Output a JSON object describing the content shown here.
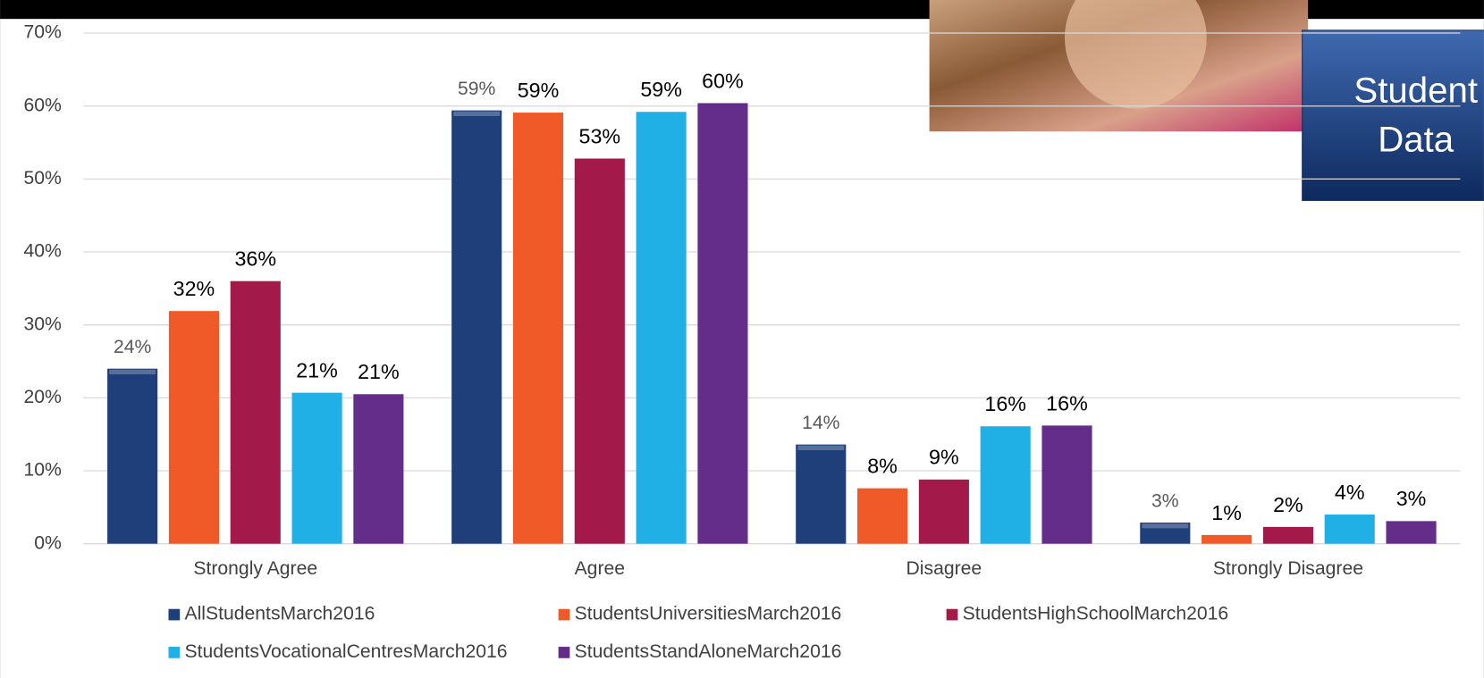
{
  "chart_data": {
    "type": "bar",
    "categories": [
      "Strongly Agree",
      "Agree",
      "Disagree",
      "Strongly Disagree"
    ],
    "series": [
      {
        "name": "AllStudentsMarch2016",
        "color": "#1f3f7a",
        "values": [
          24.0,
          59.4,
          13.6,
          2.9
        ],
        "value_labels": [
          "24%",
          "59%",
          "14%",
          "3%"
        ]
      },
      {
        "name": "StudentsUniversitiesMarch2016",
        "color": "#f05a28",
        "values": [
          31.9,
          59.1,
          7.6,
          1.2
        ],
        "value_labels": [
          "32%",
          "59%",
          "8%",
          "1%"
        ]
      },
      {
        "name": "StudentsHighSchoolMarch2016",
        "color": "#a3194a",
        "values": [
          36.0,
          52.8,
          8.8,
          2.3
        ],
        "value_labels": [
          "36%",
          "53%",
          "9%",
          "2%"
        ]
      },
      {
        "name": "StudentsVocationalCentresMarch2016",
        "color": "#21b0e6",
        "values": [
          20.7,
          59.2,
          16.1,
          4.0
        ],
        "value_labels": [
          "21%",
          "59%",
          "16%",
          "4%"
        ]
      },
      {
        "name": "StudentsStandAloneMarch2016",
        "color": "#652d8a",
        "values": [
          20.5,
          60.4,
          16.2,
          3.1
        ],
        "value_labels": [
          "21%",
          "60%",
          "16%",
          "3%"
        ]
      }
    ],
    "ylim": [
      0,
      70
    ],
    "yticks": [
      {
        "value": 0,
        "label": "0%"
      },
      {
        "value": 10,
        "label": "10%"
      },
      {
        "value": 20,
        "label": "20%"
      },
      {
        "value": 30,
        "label": "30%"
      },
      {
        "value": 40,
        "label": "40%"
      },
      {
        "value": 50,
        "label": "50%"
      },
      {
        "value": 60,
        "label": "60%"
      },
      {
        "value": 70,
        "label": "70%"
      }
    ],
    "grid": true,
    "legend": "bottom"
  },
  "banner": {
    "lines": [
      "Student",
      "Data"
    ]
  }
}
